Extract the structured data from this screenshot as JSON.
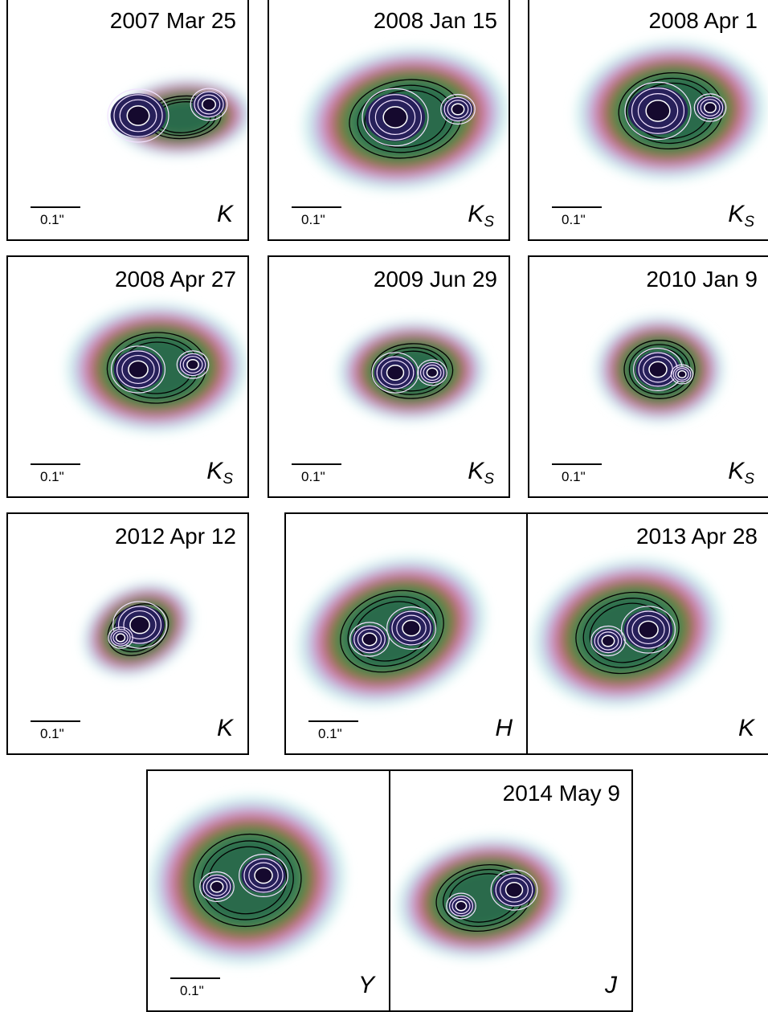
{
  "scale_label": "0.1\"",
  "colors": {
    "core": "#15092e",
    "inner": "#27205a",
    "mid": "#2a6a4c",
    "green": "#3f8a5a",
    "olive": "#7c7a32",
    "pink": "#cf6a8c",
    "lilac": "#c6a6dd",
    "cyan": "#bfe9e8",
    "contour_black": "#000000",
    "contour_white": "#f2e2ff"
  },
  "panels": [
    {
      "date": "2007 Mar 25",
      "band": "K",
      "band_sub": ""
    },
    {
      "date": "2008 Jan 15",
      "band": "K",
      "band_sub": "S"
    },
    {
      "date": "2008 Apr 1",
      "band": "K",
      "band_sub": "S"
    },
    {
      "date": "2008 Apr 27",
      "band": "K",
      "band_sub": "S"
    },
    {
      "date": "2009 Jun 29",
      "band": "K",
      "band_sub": "S"
    },
    {
      "date": "2010 Jan 9",
      "band": "K",
      "band_sub": "S"
    },
    {
      "date": "2012 Apr 12",
      "band": "K",
      "band_sub": ""
    },
    {
      "date": "",
      "band": "H",
      "band_sub": ""
    },
    {
      "date": "2013 Apr 28",
      "band": "K",
      "band_sub": ""
    },
    {
      "date": "",
      "band": "Y",
      "band_sub": ""
    },
    {
      "date": "2014 May 9",
      "band": "J",
      "band_sub": ""
    }
  ]
}
